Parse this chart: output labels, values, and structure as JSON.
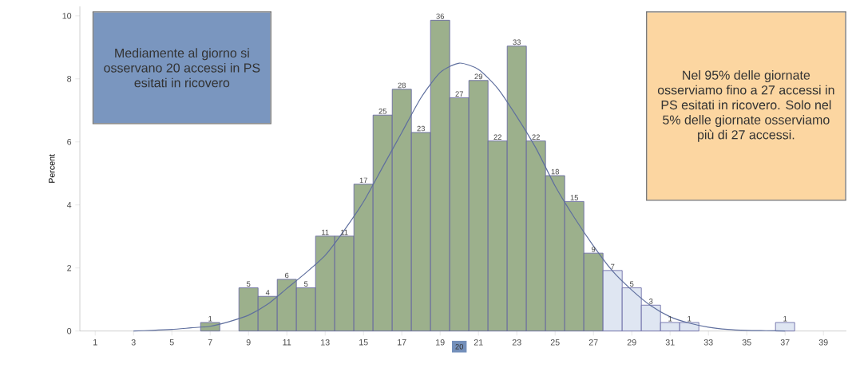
{
  "chart_data": {
    "type": "histogram",
    "ylabel": "Percent",
    "bins": [
      6.5,
      7.5,
      8.5,
      9.5,
      10.5,
      11.5,
      12.5,
      13.5,
      14.5,
      15.5,
      16.5,
      17.5,
      18.5,
      19.5,
      20.5,
      21.5,
      22.5,
      23.5,
      24.5,
      25.5,
      26.5,
      27.5,
      28.5,
      29.5,
      30.5,
      31.5,
      32.5,
      33.5,
      34.5,
      35.5,
      36.5,
      37.5
    ],
    "values": [
      0.27,
      0,
      1.37,
      1.1,
      1.64,
      1.37,
      3.01,
      3.01,
      4.66,
      6.85,
      7.67,
      6.3,
      9.86,
      7.4,
      7.95,
      6.03,
      9.04,
      6.03,
      4.93,
      4.11,
      2.47,
      1.92,
      1.37,
      0.82,
      0.27,
      0.27,
      0,
      0,
      0,
      0,
      0.27
    ],
    "colors": [
      "#9cb08c",
      "#9cb08c",
      "#9cb08c",
      "#9cb08c",
      "#9cb08c",
      "#9cb08c",
      "#9cb08c",
      "#9cb08c",
      "#9cb08c",
      "#9cb08c",
      "#9cb08c",
      "#9cb08c",
      "#9cb08c",
      "#9cb08c",
      "#9cb08c",
      "#9cb08c",
      "#9cb08c",
      "#9cb08c",
      "#9cb08c",
      "#9cb08c",
      "#9cb08c",
      "#dfe6f2",
      "#dfe6f2",
      "#dfe6f2",
      "#dfe6f2",
      "#dfe6f2",
      "#dfe6f2",
      "#dfe6f2",
      "#dfe6f2",
      "#dfe6f2",
      "#dfe6f2"
    ],
    "series": [
      {
        "type": "line",
        "color": "#5f6f9e",
        "x": [
          3,
          4,
          5,
          6,
          7,
          8,
          9,
          10,
          11,
          12,
          13,
          14,
          15,
          16,
          17,
          18,
          19,
          20,
          21,
          22,
          23,
          24,
          25,
          26,
          27,
          28,
          29,
          30,
          31,
          32,
          33,
          34,
          35,
          36,
          37
        ],
        "values": [
          0,
          0.02,
          0.05,
          0.1,
          0.15,
          0.3,
          0.5,
          0.85,
          1.35,
          1.85,
          2.4,
          3.2,
          4.1,
          5.2,
          6.3,
          7.4,
          8.2,
          8.5,
          8.3,
          7.7,
          6.8,
          5.8,
          4.6,
          3.6,
          2.7,
          1.9,
          1.3,
          0.8,
          0.45,
          0.25,
          0.12,
          0.05,
          0.02,
          0.01,
          0
        ]
      }
    ],
    "xlim": [
      0.2,
      40.2
    ],
    "xticks": [
      1,
      3,
      5,
      7,
      9,
      11,
      13,
      15,
      17,
      19,
      21,
      23,
      25,
      27,
      29,
      31,
      33,
      35,
      37,
      39
    ],
    "ylim": [
      0,
      10.3
    ],
    "yticks": [
      0,
      2,
      4,
      6,
      8,
      10
    ],
    "grid": false,
    "annotations": [
      "Mediamente al giorno si osservano 20 accessi in PS esitati in ricovero",
      "Nel 95% delle giornate osserviamo fino a 27 accessi in PS esitati in ricovero. Solo nel 5% delle giornate osserviamo più di 27 accessi.",
      "20",
      {
        "text": "1",
        "x": 7,
        "y": 0.27
      },
      {
        "text": "5",
        "x": 9,
        "y": 1.37
      },
      {
        "text": "4",
        "x": 10,
        "y": 1.1
      },
      {
        "text": "6",
        "x": 11,
        "y": 1.64
      },
      {
        "text": "5",
        "x": 12,
        "y": 1.37
      },
      {
        "text": "11",
        "x": 13,
        "y": 3.01
      },
      {
        "text": "11",
        "x": 14,
        "y": 3.01
      },
      {
        "text": "17",
        "x": 15,
        "y": 4.66
      },
      {
        "text": "25",
        "x": 16,
        "y": 6.85
      },
      {
        "text": "28",
        "x": 17,
        "y": 7.67
      },
      {
        "text": "23",
        "x": 18,
        "y": 6.3
      },
      {
        "text": "36",
        "x": 19,
        "y": 9.86
      },
      {
        "text": "27",
        "x": 20,
        "y": 7.4
      },
      {
        "text": "29",
        "x": 21,
        "y": 7.95
      },
      {
        "text": "22",
        "x": 22,
        "y": 6.03
      },
      {
        "text": "33",
        "x": 23,
        "y": 9.04
      },
      {
        "text": "22",
        "x": 24,
        "y": 6.03
      },
      {
        "text": "18",
        "x": 25,
        "y": 4.93
      },
      {
        "text": "15",
        "x": 26,
        "y": 4.11
      },
      {
        "text": "9",
        "x": 27,
        "y": 2.47
      },
      {
        "text": "7",
        "x": 28,
        "y": 1.92
      },
      {
        "text": "5",
        "x": 29,
        "y": 1.37
      },
      {
        "text": "3",
        "x": 30,
        "y": 0.82
      },
      {
        "text": "1",
        "x": 31,
        "y": 0.27
      },
      {
        "text": "1",
        "x": 32,
        "y": 0.27
      },
      {
        "text": "1",
        "x": 37,
        "y": 0.27
      }
    ]
  }
}
